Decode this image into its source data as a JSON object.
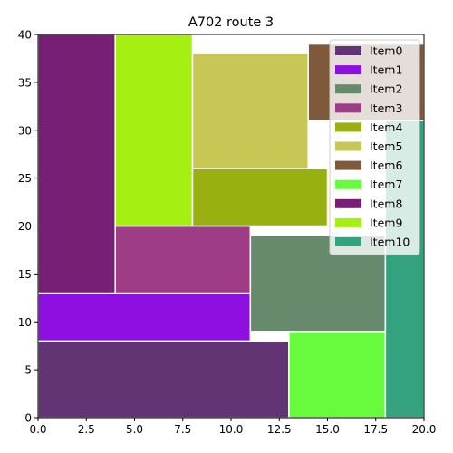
{
  "chart_data": {
    "type": "treemap",
    "title": "A702 route 3",
    "xlabel": "",
    "ylabel": "",
    "xlim": [
      0,
      20
    ],
    "ylim": [
      0,
      40
    ],
    "x_ticks": [
      0.0,
      2.5,
      5.0,
      7.5,
      10.0,
      12.5,
      15.0,
      17.5,
      20.0
    ],
    "x_tick_labels": [
      "0.0",
      "2.5",
      "5.0",
      "7.5",
      "10.0",
      "12.5",
      "15.0",
      "17.5",
      "20.0"
    ],
    "y_ticks": [
      0,
      5,
      10,
      15,
      20,
      25,
      30,
      35,
      40
    ],
    "y_tick_labels": [
      "0",
      "5",
      "10",
      "15",
      "20",
      "25",
      "30",
      "35",
      "40"
    ],
    "grid": false,
    "legend_position": "top-right",
    "items": [
      {
        "name": "Item0",
        "color": "#633474",
        "x0": 0,
        "y0": 0,
        "x1": 13,
        "y1": 8
      },
      {
        "name": "Item1",
        "color": "#8e10e0",
        "x0": 0,
        "y0": 8,
        "x1": 11,
        "y1": 13
      },
      {
        "name": "Item2",
        "color": "#678a6d",
        "x0": 11,
        "y0": 9,
        "x1": 18,
        "y1": 19
      },
      {
        "name": "Item3",
        "color": "#9e3c86",
        "x0": 4,
        "y0": 13,
        "x1": 11,
        "y1": 20
      },
      {
        "name": "Item4",
        "color": "#98b010",
        "x0": 8,
        "y0": 20,
        "x1": 15,
        "y1": 26
      },
      {
        "name": "Item5",
        "color": "#c6c754",
        "x0": 8,
        "y0": 26,
        "x1": 14,
        "y1": 38
      },
      {
        "name": "Item6",
        "color": "#7f593c",
        "x0": 14,
        "y0": 31,
        "x1": 20,
        "y1": 39
      },
      {
        "name": "Item7",
        "color": "#68fa3c",
        "x0": 13,
        "y0": 0,
        "x1": 18,
        "y1": 9
      },
      {
        "name": "Item8",
        "color": "#771f75",
        "x0": 0,
        "y0": 13,
        "x1": 4,
        "y1": 40
      },
      {
        "name": "Item9",
        "color": "#a6ef13",
        "x0": 4,
        "y0": 20,
        "x1": 8,
        "y1": 40
      },
      {
        "name": "Item10",
        "color": "#34a17f",
        "x0": 18,
        "y0": 0,
        "x1": 20,
        "y1": 31
      }
    ]
  }
}
